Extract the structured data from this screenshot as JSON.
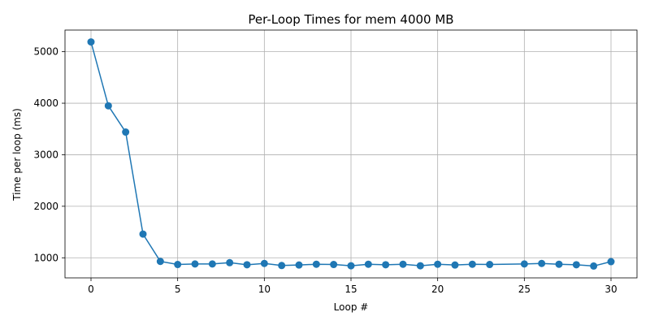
{
  "chart_data": {
    "type": "line",
    "title": "Per-Loop Times for mem 4000 MB",
    "xlabel": "Loop #",
    "ylabel": "Time per loop (ms)",
    "xlim": [
      -1.5,
      31.5
    ],
    "ylim": [
      610,
      5420
    ],
    "xticks": [
      0,
      5,
      10,
      15,
      20,
      25,
      30
    ],
    "yticks": [
      1000,
      2000,
      3000,
      4000,
      5000
    ],
    "grid": true,
    "color": "#1f77b4",
    "marker": "circle",
    "series": [
      {
        "x": [
          0,
          1,
          2,
          3,
          4,
          5,
          6,
          7,
          8,
          9,
          10,
          11,
          12,
          13,
          14,
          15,
          16,
          17,
          18,
          19,
          20,
          21,
          22,
          23,
          25,
          26,
          27,
          28,
          29,
          30
        ],
        "values": [
          5190,
          3950,
          3440,
          1460,
          930,
          870,
          880,
          880,
          905,
          865,
          890,
          850,
          860,
          875,
          870,
          845,
          875,
          865,
          875,
          845,
          875,
          860,
          875,
          870,
          880,
          890,
          875,
          865,
          840,
          925
        ]
      }
    ]
  }
}
